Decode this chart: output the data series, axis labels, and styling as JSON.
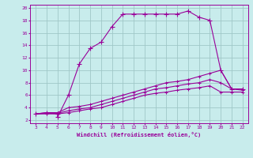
{
  "xlabel": "Windchill (Refroidissement éolien,°C)",
  "background_color": "#c8ecec",
  "grid_color": "#a0c8c8",
  "line_color": "#990099",
  "xlim": [
    2.5,
    22.5
  ],
  "ylim": [
    1.5,
    20.5
  ],
  "xticks": [
    3,
    4,
    5,
    6,
    7,
    8,
    9,
    10,
    11,
    12,
    13,
    14,
    15,
    16,
    17,
    18,
    19,
    20,
    21,
    22
  ],
  "yticks": [
    2,
    4,
    6,
    8,
    10,
    12,
    14,
    16,
    18,
    20
  ],
  "line1_x": [
    3,
    4,
    5,
    5,
    6,
    7,
    8,
    9,
    10,
    11,
    12,
    13,
    14,
    15,
    16,
    17,
    18,
    19,
    20,
    21,
    22
  ],
  "line1_y": [
    3,
    3.2,
    3.0,
    2.5,
    6,
    11,
    13.5,
    14.5,
    17,
    19,
    19,
    19,
    19,
    19,
    19,
    19.5,
    18.5,
    18,
    10,
    7,
    7
  ],
  "line2_x": [
    3,
    4,
    5,
    6,
    7,
    8,
    9,
    10,
    11,
    12,
    13,
    14,
    15,
    16,
    17,
    18,
    19,
    20,
    21,
    22
  ],
  "line2_y": [
    3,
    3.2,
    3.2,
    4,
    4.2,
    4.5,
    5,
    5.5,
    6,
    6.5,
    7,
    7.5,
    8,
    8.2,
    8.5,
    9,
    9.5,
    10,
    7,
    7
  ],
  "line3_x": [
    3,
    4,
    5,
    6,
    7,
    8,
    9,
    10,
    11,
    12,
    13,
    14,
    15,
    16,
    17,
    18,
    19,
    20,
    21,
    22
  ],
  "line3_y": [
    3,
    3.1,
    3.1,
    3.5,
    3.8,
    4,
    4.5,
    5,
    5.5,
    6,
    6.5,
    7,
    7.2,
    7.5,
    7.8,
    8,
    8.5,
    8,
    7,
    6.8
  ],
  "line4_x": [
    3,
    4,
    5,
    6,
    7,
    8,
    9,
    10,
    11,
    12,
    13,
    14,
    15,
    16,
    17,
    18,
    19,
    20,
    21,
    22
  ],
  "line4_y": [
    3,
    3.0,
    3.0,
    3.2,
    3.5,
    3.8,
    4,
    4.5,
    5,
    5.5,
    6,
    6.3,
    6.5,
    6.8,
    7,
    7.2,
    7.5,
    6.5,
    6.5,
    6.5
  ]
}
